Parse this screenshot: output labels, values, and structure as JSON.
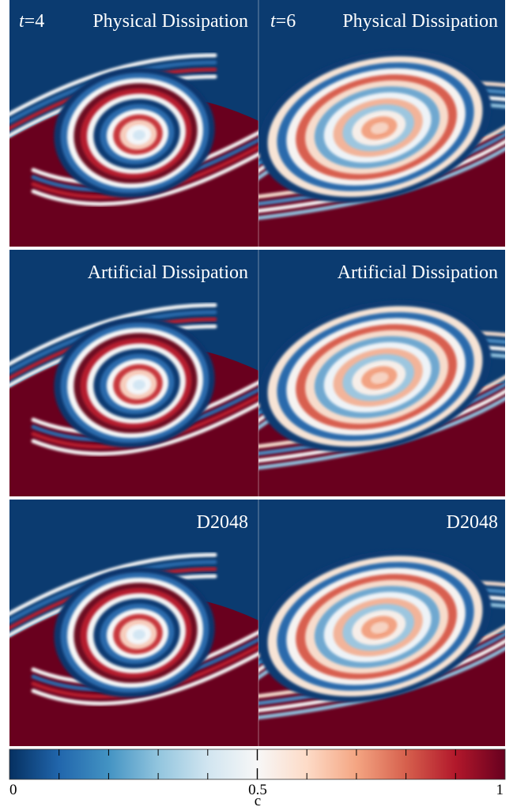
{
  "colors": {
    "low": "#0b3b70",
    "mid": "#f7f7f7",
    "high": "#67001f",
    "panel_top": "#0b3b70",
    "panel_bottom": "#69001e",
    "separator": "#ffffff"
  },
  "columns": [
    {
      "time_label_var": "t",
      "time_label_value": "=4"
    },
    {
      "time_label_var": "t",
      "time_label_value": "=6"
    }
  ],
  "rows": [
    {
      "label": "Physical Dissipation"
    },
    {
      "label": "Artificial Dissipation"
    },
    {
      "label": "D2048"
    }
  ],
  "colorbar": {
    "label": "c",
    "min": 0,
    "max": 1,
    "tick_labels": [
      "0",
      "0.5",
      "1"
    ],
    "stops": [
      "#053061",
      "#2166ac",
      "#4393c3",
      "#92c5de",
      "#d1e5f0",
      "#f7f7f7",
      "#fddbc7",
      "#f4a582",
      "#d6604d",
      "#b2182b",
      "#67001f"
    ]
  }
}
